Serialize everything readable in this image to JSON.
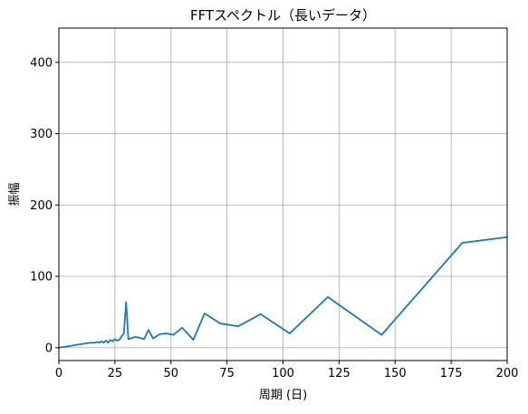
{
  "chart_data": {
    "type": "line",
    "title": "FFTスペクトル（長いデータ）",
    "xlabel": "周期 (日)",
    "ylabel": "振幅",
    "xlim": [
      0,
      200
    ],
    "ylim": [
      -18,
      448
    ],
    "x_ticks": [
      0,
      25,
      50,
      75,
      100,
      125,
      150,
      175,
      200
    ],
    "y_ticks": [
      0,
      100,
      200,
      300,
      400
    ],
    "grid": true,
    "series": [
      {
        "color": "#1f77b4",
        "points": [
          [
            0,
            0
          ],
          [
            2,
            1
          ],
          [
            4,
            2
          ],
          [
            6,
            3
          ],
          [
            8,
            4
          ],
          [
            10,
            5
          ],
          [
            12,
            6
          ],
          [
            14,
            7
          ],
          [
            16,
            7
          ],
          [
            17,
            8
          ],
          [
            18,
            7
          ],
          [
            19,
            9
          ],
          [
            20,
            7
          ],
          [
            21,
            10
          ],
          [
            22,
            7
          ],
          [
            23,
            11
          ],
          [
            24,
            9
          ],
          [
            25,
            12
          ],
          [
            26,
            10
          ],
          [
            27,
            11
          ],
          [
            28,
            16
          ],
          [
            29,
            20
          ],
          [
            30,
            64
          ],
          [
            31,
            12
          ],
          [
            32,
            13
          ],
          [
            34,
            15
          ],
          [
            36,
            14
          ],
          [
            38,
            12
          ],
          [
            40,
            25
          ],
          [
            42,
            13
          ],
          [
            45,
            19
          ],
          [
            48,
            20
          ],
          [
            51,
            18
          ],
          [
            55,
            28
          ],
          [
            60,
            11
          ],
          [
            65,
            48
          ],
          [
            72,
            34
          ],
          [
            80,
            30
          ],
          [
            90,
            47
          ],
          [
            103,
            20
          ],
          [
            120,
            71
          ],
          [
            144,
            18
          ],
          [
            180,
            147
          ],
          [
            200,
            155
          ]
        ]
      }
    ]
  }
}
